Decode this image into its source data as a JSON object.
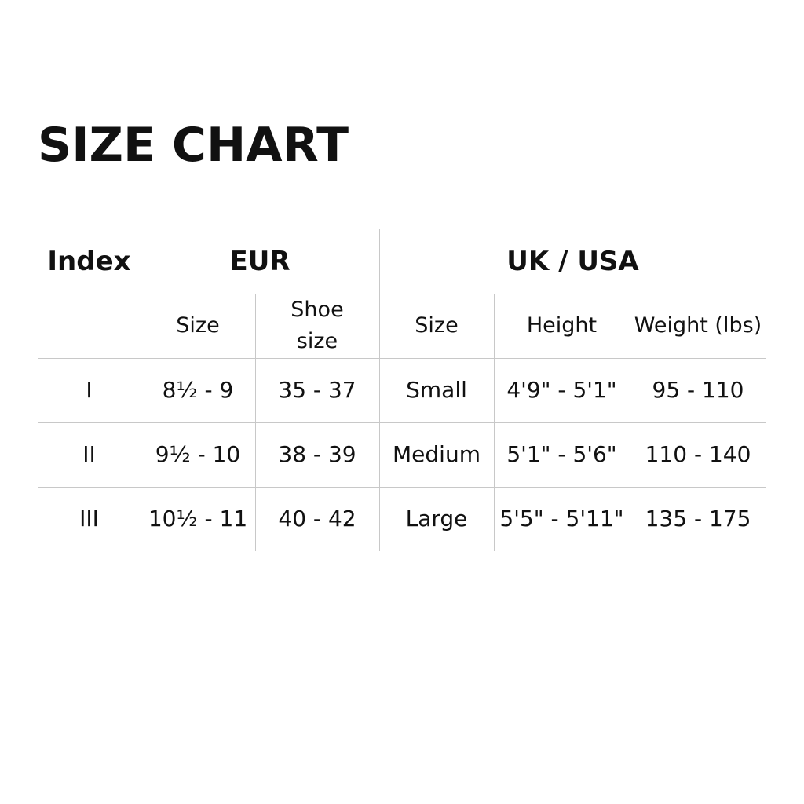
{
  "title": "SIZE CHART",
  "table": {
    "group_headers": {
      "index": "Index",
      "eur": "EUR",
      "uk_usa": "UK / USA"
    },
    "sub_headers": [
      "",
      "Size",
      "Shoe size",
      "Size",
      "Height",
      "Weight (lbs)"
    ],
    "rows": [
      [
        "I",
        "8½ - 9",
        "35 - 37",
        "Small",
        "4'9\" - 5'1\"",
        "95 - 110"
      ],
      [
        "II",
        "9½ - 10",
        "38 - 39",
        "Medium",
        "5'1\" - 5'6\"",
        "110 - 140"
      ],
      [
        "III",
        "10½ - 11",
        "40 - 42",
        "Large",
        "5'5\" - 5'11\"",
        "135 - 175"
      ]
    ]
  }
}
